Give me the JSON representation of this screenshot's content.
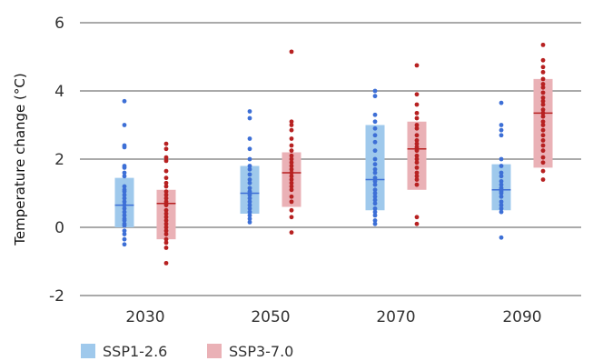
{
  "chart_data": {
    "type": "box-strip",
    "ylabel": "Temperature change (°C)",
    "xlabel": "",
    "ylim": [
      -2,
      6
    ],
    "yticks": [
      6,
      4,
      2,
      0,
      -2
    ],
    "grid": true,
    "legend_position": "bottom-left",
    "categories": [
      "2030",
      "2050",
      "2070",
      "2090"
    ],
    "series": [
      {
        "name": "SSP1-2.6",
        "box_color": "#9fc9ec",
        "line_color": "#3d6fd6",
        "point_color": "#3d6fd6",
        "boxes": [
          {
            "low": 0.0,
            "high": 1.45,
            "median": 0.65
          },
          {
            "low": 0.4,
            "high": 1.8,
            "median": 1.0
          },
          {
            "low": 0.5,
            "high": 3.0,
            "median": 1.4
          },
          {
            "low": 0.5,
            "high": 1.85,
            "median": 1.1
          }
        ],
        "points": [
          [
            3.7,
            3.0,
            2.4,
            2.35,
            1.8,
            1.75,
            1.6,
            1.5,
            1.2,
            1.1,
            1.05,
            0.95,
            0.85,
            0.75,
            0.65,
            0.55,
            0.45,
            0.35,
            0.25,
            0.2,
            0.1,
            0.05,
            -0.1,
            -0.2,
            -0.35,
            -0.5
          ],
          [
            3.4,
            3.2,
            2.6,
            2.3,
            2.0,
            1.8,
            1.7,
            1.55,
            1.4,
            1.3,
            1.15,
            1.05,
            1.0,
            0.95,
            0.85,
            0.75,
            0.65,
            0.55,
            0.45,
            0.35,
            0.25,
            0.15
          ],
          [
            4.0,
            3.85,
            3.3,
            3.1,
            2.9,
            2.7,
            2.5,
            2.25,
            2.0,
            1.85,
            1.7,
            1.6,
            1.45,
            1.35,
            1.25,
            1.1,
            1.0,
            0.9,
            0.8,
            0.7,
            0.55,
            0.45,
            0.35,
            0.2,
            0.1
          ],
          [
            3.65,
            3.0,
            2.85,
            2.7,
            2.0,
            1.8,
            1.6,
            1.5,
            1.35,
            1.25,
            1.15,
            1.1,
            1.05,
            1.0,
            0.9,
            0.75,
            0.65,
            0.55,
            0.45,
            -0.3
          ]
        ]
      },
      {
        "name": "SSP3-7.0",
        "box_color": "#eab1b6",
        "line_color": "#b72121",
        "point_color": "#b72121",
        "boxes": [
          {
            "low": -0.35,
            "high": 1.1,
            "median": 0.7
          },
          {
            "low": 0.6,
            "high": 2.2,
            "median": 1.6
          },
          {
            "low": 1.1,
            "high": 3.1,
            "median": 2.3
          },
          {
            "low": 1.75,
            "high": 4.35,
            "median": 3.35
          }
        ],
        "points": [
          [
            2.45,
            2.3,
            2.05,
            1.95,
            1.65,
            1.45,
            1.3,
            1.2,
            1.05,
            0.95,
            0.85,
            0.75,
            0.65,
            0.5,
            0.4,
            0.3,
            0.2,
            0.1,
            0.0,
            -0.1,
            -0.2,
            -0.35,
            -0.45,
            -0.6,
            -1.05
          ],
          [
            5.15,
            3.1,
            3.0,
            2.85,
            2.6,
            2.4,
            2.25,
            2.1,
            2.0,
            1.9,
            1.8,
            1.7,
            1.6,
            1.5,
            1.4,
            1.3,
            1.2,
            1.1,
            0.9,
            0.75,
            0.5,
            0.3,
            -0.15
          ],
          [
            4.75,
            3.9,
            3.6,
            3.35,
            3.2,
            3.0,
            2.9,
            2.7,
            2.55,
            2.45,
            2.35,
            2.25,
            2.1,
            2.0,
            1.9,
            1.75,
            1.6,
            1.5,
            1.4,
            1.25,
            0.3,
            0.1
          ],
          [
            5.35,
            4.9,
            4.7,
            4.55,
            4.35,
            4.2,
            4.1,
            3.95,
            3.8,
            3.7,
            3.6,
            3.45,
            3.35,
            3.25,
            3.1,
            3.0,
            2.85,
            2.7,
            2.55,
            2.4,
            2.25,
            2.05,
            1.9,
            1.65,
            1.4
          ]
        ]
      }
    ]
  }
}
